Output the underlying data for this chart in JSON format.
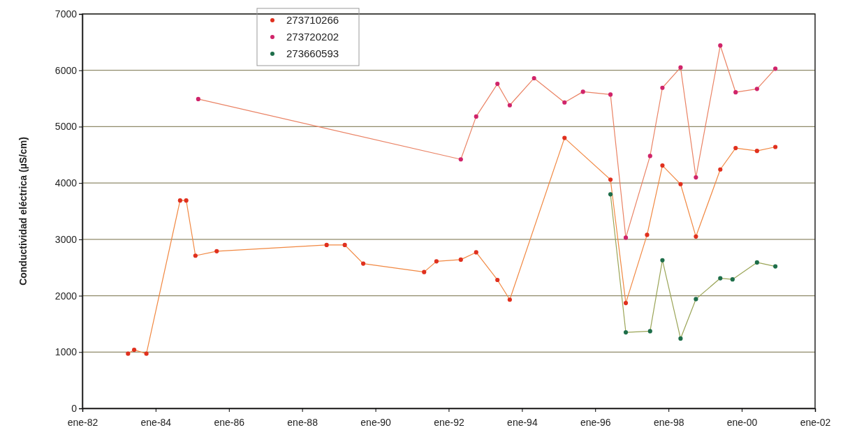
{
  "chart_data": {
    "type": "line",
    "ylabel": "Conductividad eléctrica (µS/cm)",
    "xlim": [
      "1982-01",
      "2002-01"
    ],
    "xticks": [
      {
        "value": "1982-01",
        "label": "ene-82"
      },
      {
        "value": "1984-01",
        "label": "ene-84"
      },
      {
        "value": "1986-01",
        "label": "ene-86"
      },
      {
        "value": "1988-01",
        "label": "ene-88"
      },
      {
        "value": "1990-01",
        "label": "ene-90"
      },
      {
        "value": "1992-01",
        "label": "ene-92"
      },
      {
        "value": "1994-01",
        "label": "ene-94"
      },
      {
        "value": "1996-01",
        "label": "ene-96"
      },
      {
        "value": "1998-01",
        "label": "ene-98"
      },
      {
        "value": "2000-01",
        "label": "ene-00"
      },
      {
        "value": "2002-01",
        "label": "ene-02"
      }
    ],
    "ylim": [
      0,
      7000
    ],
    "yticks": [
      0,
      1000,
      2000,
      3000,
      4000,
      5000,
      6000,
      7000
    ],
    "grid": "y",
    "legend": "top left",
    "marker": "circle",
    "line_style": "solid",
    "series": [
      {
        "name": "273710266",
        "color": "#e0301e",
        "x": [
          "1983-04",
          "1983-06",
          "1983-10",
          "1984-09",
          "1984-11",
          "1985-02",
          "1985-09",
          "1988-09",
          "1989-03",
          "1989-09",
          "1991-05",
          "1991-09",
          "1992-05",
          "1992-10",
          "1993-05",
          "1993-09",
          "1995-03",
          "1996-06",
          "1996-11",
          "1997-06",
          "1997-11",
          "1998-05",
          "1998-10",
          "1999-06",
          "1999-11",
          "2000-06",
          "2000-12"
        ],
        "values": [
          970,
          1040,
          970,
          3690,
          3690,
          2710,
          2790,
          2900,
          2900,
          2570,
          2420,
          2610,
          2640,
          2770,
          2280,
          1930,
          4800,
          4060,
          1870,
          3080,
          4310,
          3980,
          3050,
          4240,
          4620,
          4570,
          4640
        ]
      },
      {
        "name": "273720202",
        "color": "#d0246a",
        "x": [
          "1985-03",
          "1992-05",
          "1992-10",
          "1993-05",
          "1993-09",
          "1994-05",
          "1995-03",
          "1995-09",
          "1996-06",
          "1996-11",
          "1997-07",
          "1997-11",
          "1998-05",
          "1998-10",
          "1999-06",
          "1999-11",
          "2000-06",
          "2000-12"
        ],
        "values": [
          5490,
          4420,
          5180,
          5760,
          5380,
          5860,
          5430,
          5620,
          5570,
          3030,
          4480,
          5690,
          6050,
          4100,
          6440,
          5610,
          5670,
          6030
        ]
      },
      {
        "name": "273660593",
        "color": "#1e6e4a",
        "x": [
          "1996-06",
          "1996-11",
          "1997-07",
          "1997-11",
          "1998-05",
          "1998-10",
          "1999-06",
          "1999-10",
          "2000-06",
          "2000-12"
        ],
        "values": [
          3800,
          1350,
          1370,
          2630,
          1240,
          1940,
          2310,
          2290,
          2590,
          2520
        ]
      }
    ]
  }
}
